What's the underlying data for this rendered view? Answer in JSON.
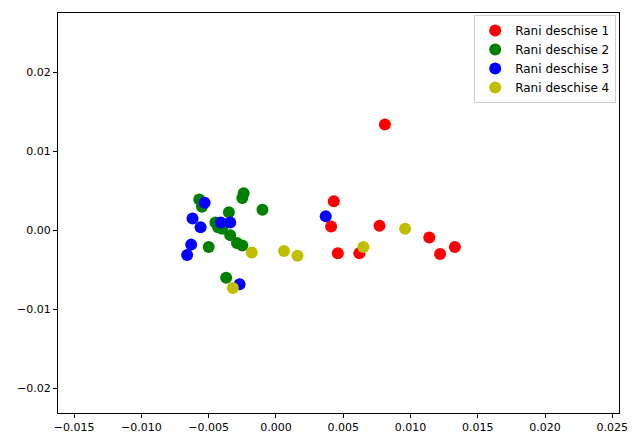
{
  "chart_data": {
    "type": "scatter",
    "xlim": [
      -0.0162,
      0.0255
    ],
    "ylim": [
      -0.0231,
      0.0275
    ],
    "xticks": [
      {
        "value": -0.015,
        "label": "−0.015"
      },
      {
        "value": -0.01,
        "label": "−0.010"
      },
      {
        "value": -0.005,
        "label": "−0.005"
      },
      {
        "value": 0,
        "label": "0.000"
      },
      0.005,
      {
        "value": 0.01,
        "label": "0.010"
      },
      0.015,
      {
        "value": 0.02,
        "label": "0.020"
      },
      0.025
    ],
    "yticks": [
      {
        "value": -0.02,
        "label": "−0.02"
      },
      {
        "value": -0.01,
        "label": "−0.01"
      },
      {
        "value": 0,
        "label": "0.00"
      },
      0.01,
      0.02
    ],
    "grid": false,
    "legend": "upper right",
    "marker": "circle",
    "series": [
      {
        "name": "Rani deschise 1",
        "color": "#ff0000",
        "x": [
          0.0081,
          0.0043,
          0.0041,
          0.0046,
          0.0062,
          0.0077,
          0.0114,
          0.0122,
          0.0133
        ],
        "values": [
          0.0134,
          0.0037,
          0.0005,
          -0.0029,
          -0.0029,
          0.0006,
          -0.0009,
          -0.003,
          -0.0021
        ]
      },
      {
        "name": "Rani deschise 2",
        "color": "#008000",
        "x": [
          -0.0057,
          -0.0055,
          -0.0043,
          -0.0045,
          -0.004,
          -0.0035,
          -0.0024,
          -0.0025,
          -0.001,
          -0.0034,
          -0.0029,
          -0.0025,
          -0.005,
          -0.0037
        ],
        "values": [
          0.0039,
          0.003,
          0.0004,
          0.001,
          0.0002,
          0.0023,
          0.0047,
          0.0041,
          0.0026,
          -0.0006,
          -0.0016,
          -0.0019,
          -0.0021,
          -0.006
        ]
      },
      {
        "name": "Rani deschise 3",
        "color": "#0000ff",
        "x": [
          -0.0053,
          -0.0062,
          -0.0056,
          -0.0041,
          -0.0034,
          -0.0063,
          -0.0066,
          -0.0027,
          0.0037
        ],
        "values": [
          0.0035,
          0.0015,
          0.0004,
          0.001,
          0.001,
          -0.0018,
          -0.0031,
          -0.0068,
          0.0018
        ]
      },
      {
        "name": "Rani deschise 4",
        "color": "#bfbf00",
        "x": [
          -0.0018,
          -0.0032,
          0.0006,
          0.0016,
          0.0065,
          0.0096
        ],
        "values": [
          -0.0028,
          -0.0073,
          -0.0026,
          -0.0032,
          -0.0021,
          0.0002
        ]
      }
    ]
  }
}
